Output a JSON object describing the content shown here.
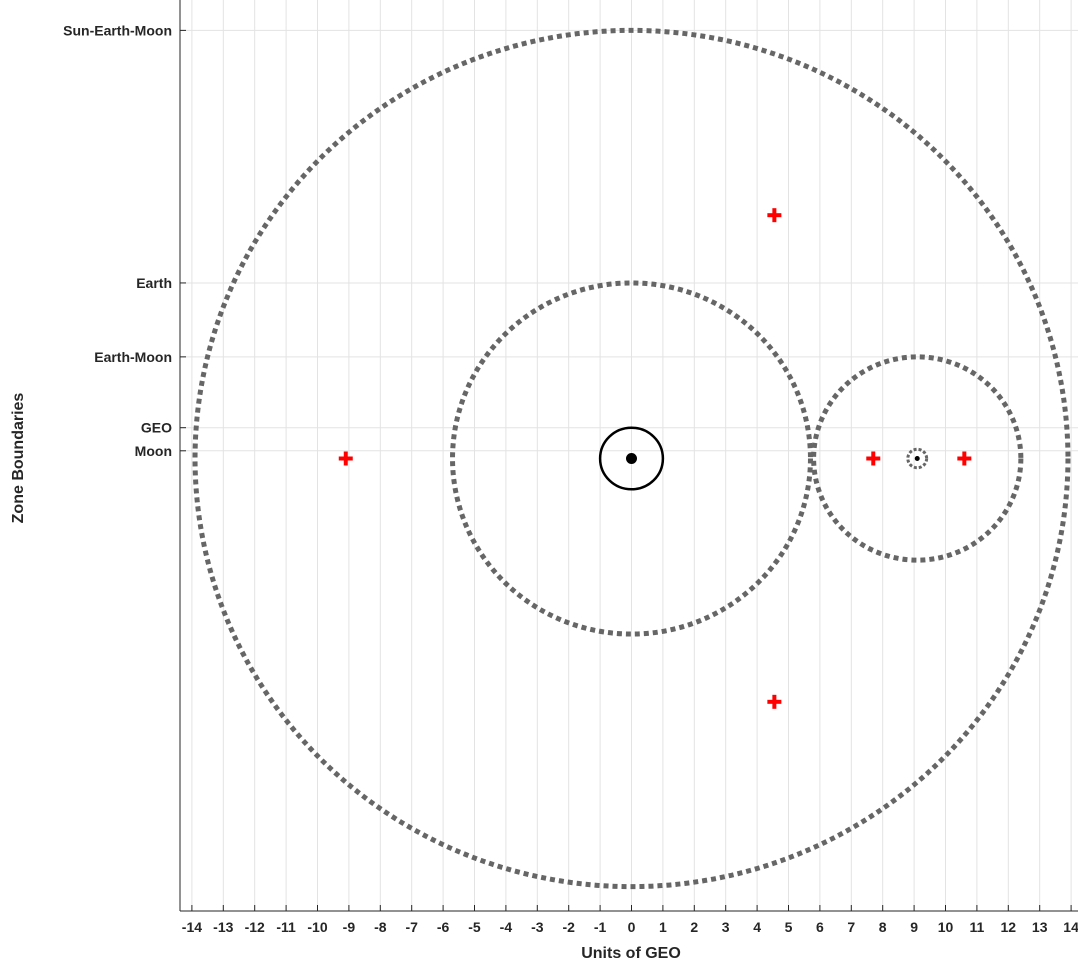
{
  "chart_data": {
    "type": "scatter",
    "title": "",
    "xlabel": "Units of GEO",
    "ylabel": "Zone Boundaries",
    "xlim": [
      -14.5,
      14.5
    ],
    "ylim": [
      -14,
      14.5
    ],
    "x_ticks": [
      -14,
      -13,
      -12,
      -11,
      -10,
      -9,
      -8,
      -7,
      -6,
      -5,
      -4,
      -3,
      -2,
      -1,
      0,
      1,
      2,
      3,
      4,
      5,
      6,
      7,
      8,
      9,
      10,
      11,
      12,
      13,
      14
    ],
    "y_ticks": [
      {
        "value": 13.9,
        "label": "Sun-Earth-Moon"
      },
      {
        "value": 5.7,
        "label": "Earth"
      },
      {
        "value": 3.3,
        "label": "Earth-Moon"
      },
      {
        "value": 1.0,
        "label": "GEO"
      },
      {
        "value": 0.25,
        "label": "Moon"
      }
    ],
    "grid": true,
    "zone_circles": [
      {
        "cx": 0,
        "cy": 0,
        "r": 13.9,
        "style": "dotted",
        "color": "#666666"
      },
      {
        "cx": 0,
        "cy": 0,
        "r": 5.7,
        "style": "dotted",
        "color": "#666666"
      },
      {
        "cx": 9.1,
        "cy": 0,
        "r": 3.3,
        "style": "dotted",
        "color": "#666666"
      },
      {
        "cx": 9.1,
        "cy": 0,
        "r": 0.3,
        "style": "dotted",
        "color": "#666666"
      },
      {
        "cx": 0,
        "cy": 0,
        "r": 1.0,
        "style": "solid",
        "color": "#000000"
      }
    ],
    "bodies": [
      {
        "x": 0,
        "y": 0,
        "size": "large"
      },
      {
        "x": 9.1,
        "y": 0,
        "size": "small"
      }
    ],
    "lagrange_points": [
      {
        "x": 4.55,
        "y": 7.9
      },
      {
        "x": 4.55,
        "y": -7.9
      },
      {
        "x": -9.1,
        "y": 0
      },
      {
        "x": 7.7,
        "y": 0
      },
      {
        "x": 10.6,
        "y": 0
      }
    ],
    "colors": {
      "zone": "#666666",
      "lagrange": "#ff0000",
      "body": "#000000",
      "grid": "#e3e3e3",
      "axis": "#262626"
    }
  }
}
